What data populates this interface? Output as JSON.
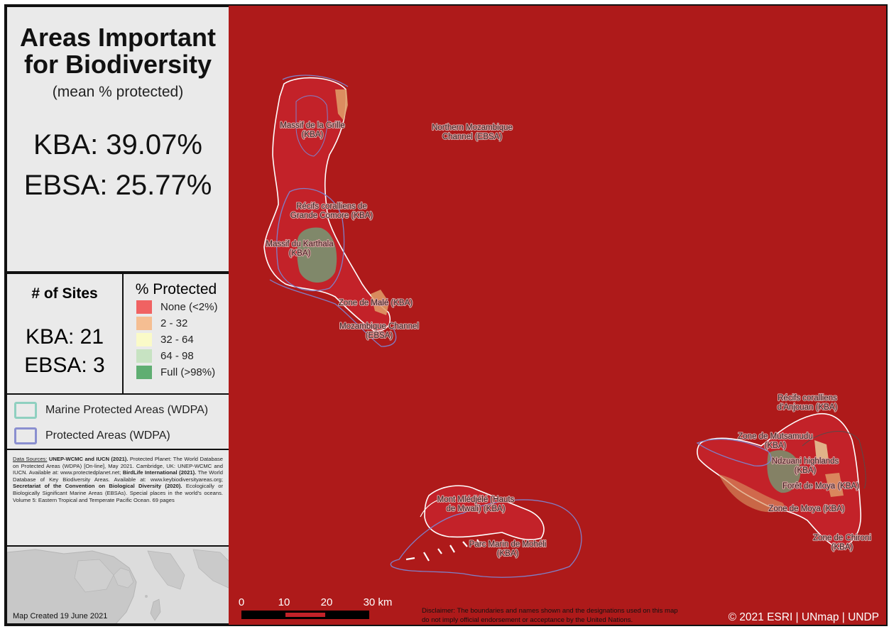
{
  "title": "Areas Important for Biodiversity",
  "subtitle": "(mean % protected)",
  "stats": {
    "kba_pct": "KBA: 39.07%",
    "ebsa_pct": "EBSA: 25.77%"
  },
  "sites": {
    "title": "# of Sites",
    "kba": "KBA: 21",
    "ebsa": "EBSA: 3"
  },
  "legend": {
    "title": "% Protected",
    "items": [
      {
        "label": "None (<2%)",
        "color": "#f06262"
      },
      {
        "label": "2 - 32",
        "color": "#f5be92"
      },
      {
        "label": "32 - 64",
        "color": "#fafac8"
      },
      {
        "label": "64 - 98",
        "color": "#c7e3c2"
      },
      {
        "label": "Full (>98%)",
        "color": "#5fae72"
      }
    ]
  },
  "protected_areas": [
    {
      "label": "Marine Protected Areas (WDPA)",
      "color": "#8fd0c0"
    },
    {
      "label": "Protected Areas (WDPA)",
      "color": "#8a8fd0"
    }
  ],
  "sources": {
    "p1_label": "Data Sources:",
    "p1_bold": "UNEP-WCMC and IUCN (2021).",
    "p1_text": "Protected Planet: The World Database on Protected Areas (WDPA) [On-line], May 2021. Cambridge, UK: UNEP-WCMC and IUCN. Available at: www.protectedplanet.net;",
    "p2_bold": "BirdLife International (2021).",
    "p2_text": "The World Database of Key Biodiversity Areas. Available at: www.keybiodiversityareas.org;",
    "p3_bold": "Secretariat of the Convention on Biological Diversity (2020).",
    "p3_text": "Ecologically or Biologically Significant Marine Areas (EBSAs). Special places in the world's oceans. Volume 5: Eastern Tropical and Temperate Pacific Ocean. 69 pages"
  },
  "created": "Map Created 19 June 2021",
  "map": {
    "labels": {
      "grille_1": "Massif de la Grille",
      "grille_2": "(KBA)",
      "nmc_1": "Northern Mozambique",
      "nmc_2": "Channel (EBSA)",
      "recifs_gc_1": "Récifs coralliens de",
      "recifs_gc_2": "Grande Comore (KBA)",
      "karthala_1": "Massif du Karthala",
      "karthala_2": "(KBA)",
      "male": "Zone de Malé (KBA)",
      "moz_1": "Mozambique Channel",
      "moz_2": "(EBSA)",
      "recifs_anj_1": "Récifs coralliens",
      "recifs_anj_2": "d'Anjouan (KBA)",
      "mutsamudu_1": "Zone de Mutsamudu",
      "mutsamudu_2": "(KBA)",
      "ndzuani_1": "Ndzuani highlands",
      "ndzuani_2": "(KBA)",
      "foret": "Forêt de Moya (KBA)",
      "moya": "Zone de Moya (KBA)",
      "chironi_1": "Zone de Chironi",
      "chironi_2": "(KBA)",
      "mledjele_1": "Mont Mlédjélé (Hauts",
      "mledjele_2": "de Mwali) (KBA)",
      "parc_1": "Parc Marin de Mohéli",
      "parc_2": "(KBA)"
    },
    "scale": {
      "t0": "0",
      "t1": "10",
      "t2": "20",
      "t3": "30 km"
    },
    "disclaimer_1": "Disclaimer: The boundaries and names shown and the designations used on this map",
    "disclaimer_2": "do not imply official endorsement or acceptance by the United Nations.",
    "credit": "© 2021 ESRI | UNmap | UNDP",
    "colors": {
      "sea": "#ae1a1a",
      "land": "#c4222a",
      "coast": "#ffffff",
      "pa_line": "#7f80c8"
    }
  }
}
